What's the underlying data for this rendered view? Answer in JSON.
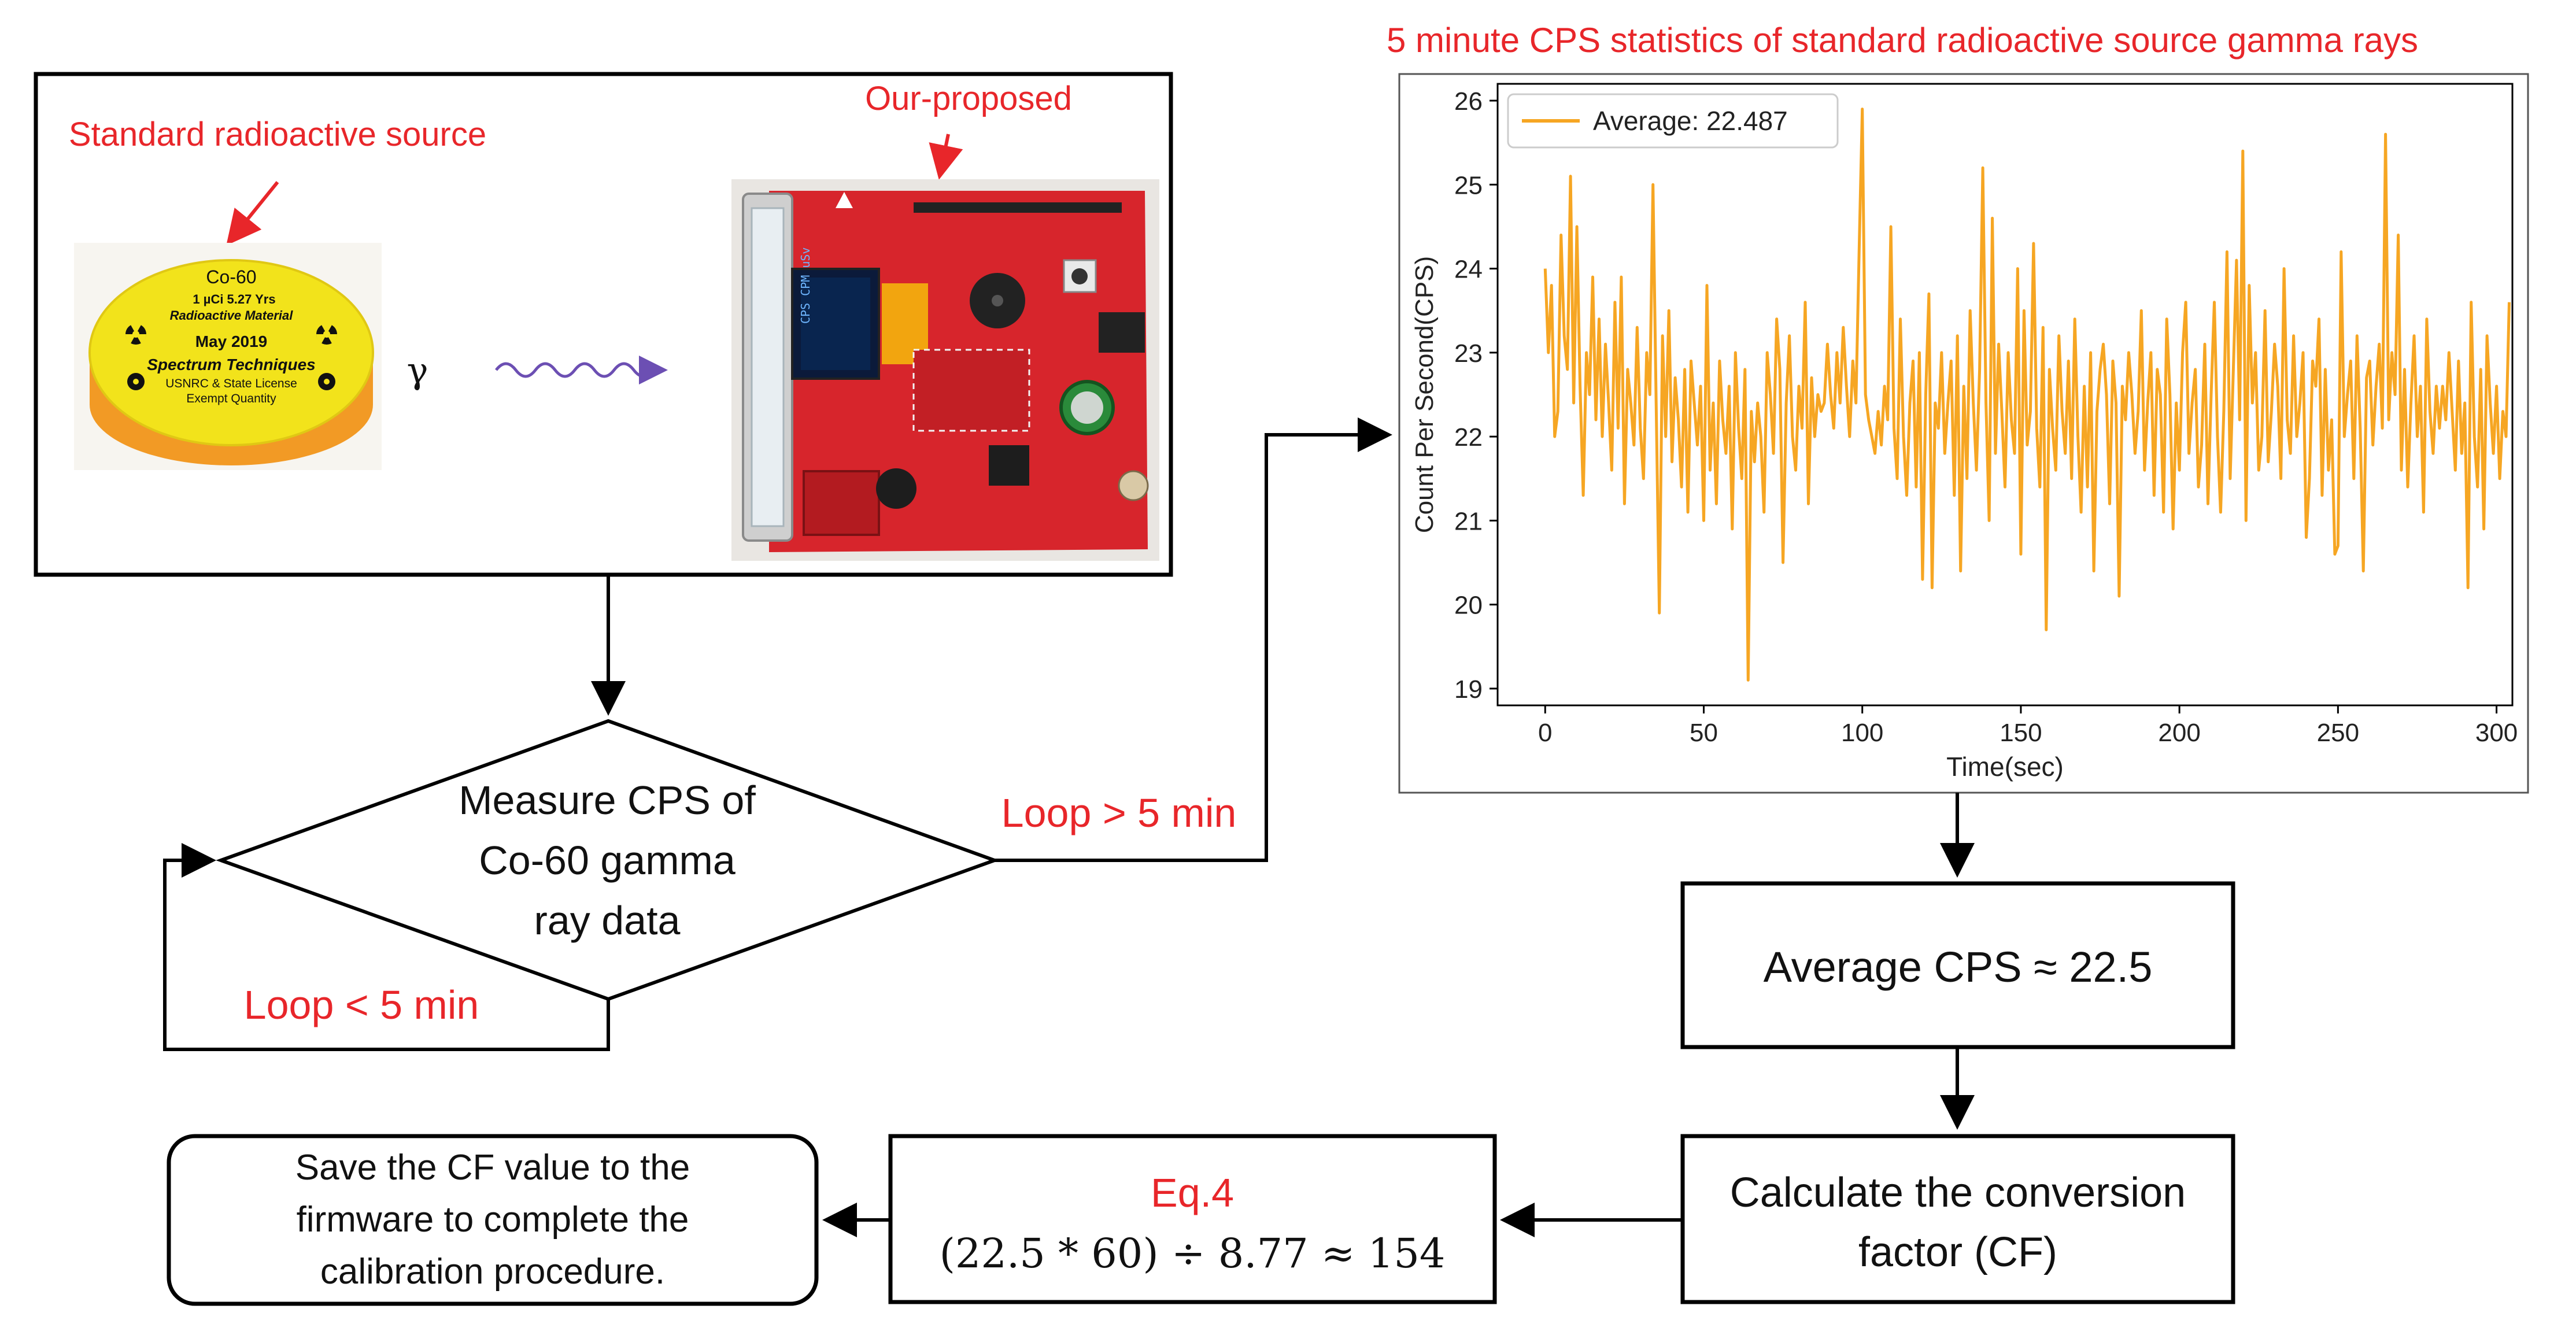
{
  "colors": {
    "accent_red": "#e8262a",
    "line_orange": "#f6a623",
    "box_stroke": "#000000",
    "wave_purple": "#6c4fb3",
    "board_red": "#d7252c",
    "source_yellow": "#f2e31b",
    "source_orange": "#f29a25"
  },
  "top_panel": {
    "source_label": "Standard radioactive source",
    "proposed_label": "Our-proposed",
    "gamma_symbol": "γ",
    "source_disc": {
      "line1": "Co-60",
      "line2": "1 µCi       5.27 Yrs",
      "line3": "Radioactive   Material",
      "line4": "May  2019",
      "line5": "Spectrum Techniques",
      "line6": "USNRC & State License",
      "line7": "Exempt Quantity"
    }
  },
  "decision": {
    "line1": "Measure CPS of",
    "line2": "Co-60 gamma",
    "line3": "ray data",
    "loop_gt": "Loop > 5 min",
    "loop_lt": "Loop  < 5 min"
  },
  "boxes": {
    "average": "Average CPS ≈ 22.5",
    "calc_line1": "Calculate the conversion",
    "calc_line2": "factor (CF)",
    "eq_label": "Eq.4",
    "eq_formula": "(22.5 * 60) ÷ 8.77 ≈ 154",
    "save_line1": "Save the CF value to the",
    "save_line2": "firmware to complete the",
    "save_line3": "calibration procedure."
  },
  "chart_data": {
    "type": "line",
    "title": "5 minute CPS statistics of standard radioactive source gamma rays",
    "xlabel": "Time(sec)",
    "ylabel": "Count Per Second(CPS)",
    "xlim": [
      -15,
      305
    ],
    "ylim": [
      18.8,
      26.2
    ],
    "xticks": [
      0,
      50,
      100,
      150,
      200,
      250,
      300
    ],
    "yticks": [
      19,
      20,
      21,
      22,
      23,
      24,
      25,
      26
    ],
    "legend": "upper-left",
    "grid": false,
    "series": [
      {
        "name": "Average: 22.487",
        "color": "#f6a623",
        "x_start": 0,
        "x_step": 1,
        "values": [
          24.0,
          23.0,
          23.8,
          22.0,
          22.3,
          24.4,
          23.2,
          22.8,
          25.1,
          22.4,
          24.5,
          22.6,
          21.3,
          23.0,
          22.5,
          23.9,
          22.2,
          23.4,
          22.0,
          23.1,
          22.4,
          21.6,
          23.6,
          22.1,
          23.9,
          21.2,
          22.8,
          22.4,
          21.9,
          23.3,
          22.1,
          21.5,
          23.0,
          22.5,
          25.0,
          22.4,
          19.9,
          23.2,
          22.0,
          23.5,
          21.7,
          22.7,
          22.2,
          21.4,
          22.8,
          21.1,
          22.9,
          22.4,
          21.9,
          22.6,
          21.0,
          23.8,
          21.6,
          22.4,
          21.2,
          22.9,
          22.2,
          21.8,
          22.6,
          20.9,
          23.0,
          22.1,
          21.5,
          22.8,
          19.1,
          22.3,
          21.7,
          22.4,
          22.0,
          21.1,
          23.0,
          22.5,
          21.8,
          23.4,
          22.8,
          20.5,
          22.4,
          23.2,
          22.0,
          21.6,
          22.6,
          22.1,
          23.6,
          21.2,
          22.7,
          22.0,
          22.5,
          22.3,
          22.4,
          23.1,
          22.5,
          22.1,
          23.0,
          22.4,
          23.3,
          22.6,
          22.0,
          22.9,
          22.4,
          24.2,
          25.9,
          22.5,
          22.2,
          22.0,
          21.8,
          22.3,
          21.9,
          22.6,
          22.2,
          24.5,
          22.1,
          21.5,
          23.4,
          22.0,
          21.3,
          22.4,
          22.9,
          21.4,
          23.0,
          20.3,
          22.5,
          23.7,
          20.2,
          22.4,
          22.1,
          23.0,
          21.8,
          22.4,
          22.9,
          21.3,
          23.2,
          20.4,
          22.6,
          21.5,
          23.5,
          22.4,
          21.6,
          22.8,
          25.2,
          22.4,
          21.0,
          24.6,
          21.8,
          23.1,
          22.3,
          21.4,
          23.0,
          22.2,
          21.8,
          24.0,
          20.6,
          23.5,
          21.9,
          22.3,
          24.3,
          22.1,
          21.4,
          23.3,
          19.7,
          22.8,
          22.1,
          21.6,
          23.2,
          22.3,
          21.8,
          22.9,
          21.5,
          23.4,
          22.0,
          21.1,
          22.6,
          21.4,
          23.0,
          20.4,
          22.3,
          22.8,
          23.1,
          22.5,
          21.2,
          22.9,
          22.4,
          20.1,
          22.6,
          22.2,
          23.0,
          22.5,
          21.8,
          22.3,
          23.5,
          21.6,
          22.4,
          23.0,
          21.3,
          22.8,
          22.5,
          21.1,
          23.4,
          22.5,
          20.9,
          22.4,
          21.6,
          23.0,
          23.6,
          21.8,
          22.4,
          22.8,
          21.4,
          21.9,
          23.1,
          21.2,
          22.5,
          23.6,
          22.0,
          21.1,
          22.3,
          24.2,
          21.5,
          22.8,
          24.1,
          22.2,
          25.4,
          21.0,
          23.8,
          22.4,
          23.0,
          21.6,
          22.0,
          23.5,
          21.7,
          22.3,
          23.1,
          22.6,
          21.5,
          24.0,
          22.2,
          21.8,
          23.2,
          22.0,
          22.4,
          23.0,
          20.8,
          21.5,
          22.9,
          22.6,
          23.4,
          21.3,
          22.8,
          21.6,
          22.2,
          20.6,
          20.7,
          24.2,
          22.0,
          22.5,
          22.9,
          21.5,
          23.2,
          22.1,
          20.4,
          22.7,
          22.9,
          21.9,
          22.6,
          23.1,
          22.1,
          25.6,
          22.2,
          23.0,
          22.5,
          24.4,
          21.6,
          22.8,
          21.4,
          22.4,
          23.2,
          22.0,
          22.6,
          21.1,
          23.4,
          22.3,
          21.8,
          22.6,
          22.1,
          22.6,
          22.2,
          23.0,
          22.3,
          21.6,
          22.9,
          21.8,
          22.4,
          20.2,
          23.6,
          22.0,
          21.4,
          22.8,
          20.9,
          23.2,
          22.4,
          21.8,
          22.6,
          21.5,
          22.3,
          22.0,
          23.6
        ]
      }
    ]
  }
}
